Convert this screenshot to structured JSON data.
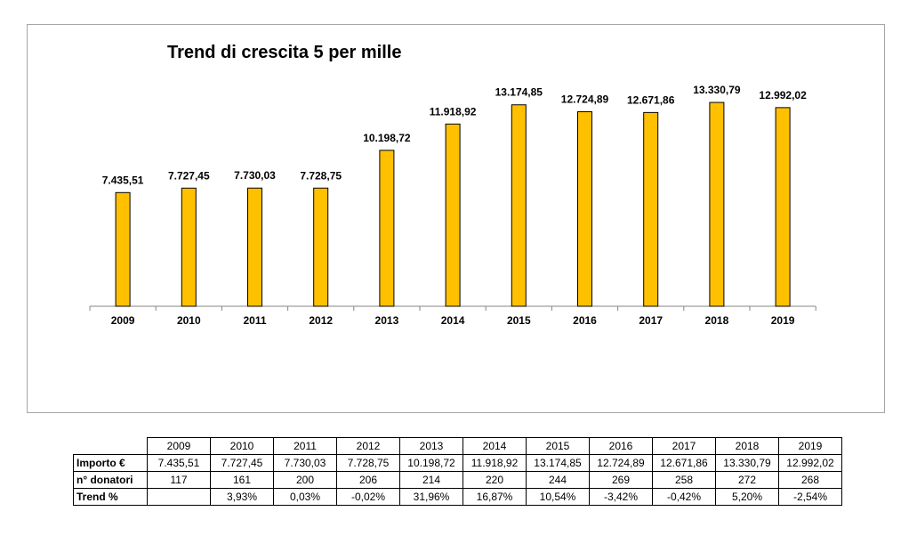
{
  "chart_data": {
    "type": "bar",
    "title": "Trend di crescita 5 per mille",
    "categories": [
      "2009",
      "2010",
      "2011",
      "2012",
      "2013",
      "2014",
      "2015",
      "2016",
      "2017",
      "2018",
      "2019"
    ],
    "values": [
      7435.51,
      7727.45,
      7730.03,
      7728.75,
      10198.72,
      11918.92,
      13174.85,
      12724.89,
      12671.86,
      13330.79,
      12992.02
    ],
    "data_labels": [
      "7.435,51",
      "7.727,45",
      "7.730,03",
      "7.728,75",
      "10.198,72",
      "11.918,92",
      "13.174,85",
      "12.724,89",
      "12.671,86",
      "13.330,79",
      "12.992,02"
    ],
    "ylim": [
      0,
      18400
    ],
    "grid": false,
    "bar_color": "#FFC000",
    "bar_stroke": "#000000"
  },
  "table": {
    "years": [
      "2009",
      "2010",
      "2011",
      "2012",
      "2013",
      "2014",
      "2015",
      "2016",
      "2017",
      "2018",
      "2019"
    ],
    "rows": [
      {
        "label": "Importo €",
        "values": [
          "7.435,51",
          "7.727,45",
          "7.730,03",
          "7.728,75",
          "10.198,72",
          "11.918,92",
          "13.174,85",
          "12.724,89",
          "12.671,86",
          "13.330,79",
          "12.992,02"
        ]
      },
      {
        "label": "n° donatori",
        "values": [
          "117",
          "161",
          "200",
          "206",
          "214",
          "220",
          "244",
          "269",
          "258",
          "272",
          "268"
        ]
      },
      {
        "label": "Trend %",
        "values": [
          "",
          "3,93%",
          "0,03%",
          "-0,02%",
          "31,96%",
          "16,87%",
          "10,54%",
          "-3,42%",
          "-0,42%",
          "5,20%",
          "-2,54%"
        ]
      }
    ]
  }
}
